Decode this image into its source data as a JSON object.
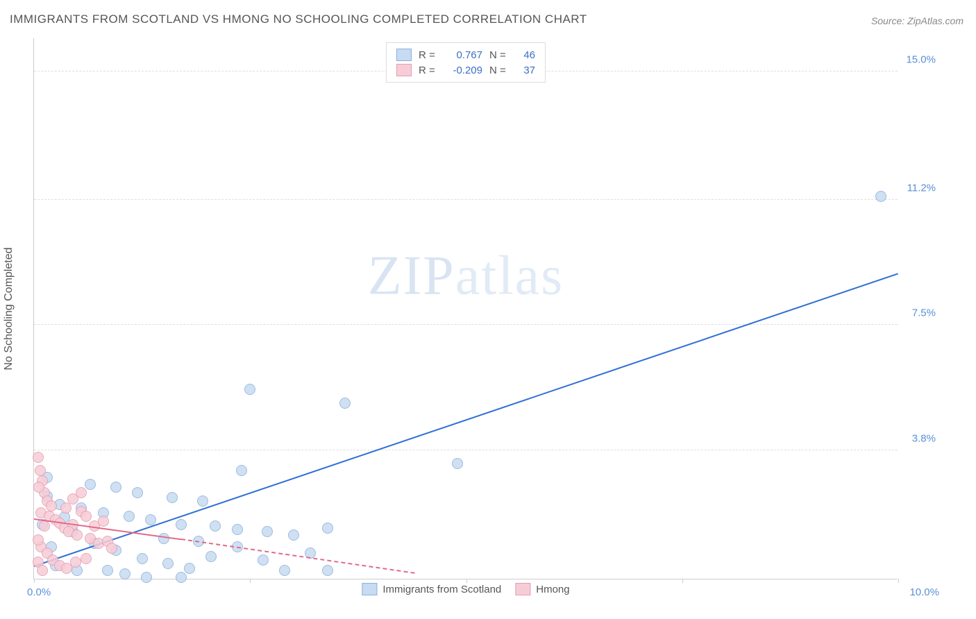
{
  "title": "IMMIGRANTS FROM SCOTLAND VS HMONG NO SCHOOLING COMPLETED CORRELATION CHART",
  "source": "Source: ZipAtlas.com",
  "ylabel": "No Schooling Completed",
  "watermark_a": "ZIP",
  "watermark_b": "atlas",
  "chart": {
    "type": "scatter",
    "xlim": [
      0,
      10
    ],
    "ylim": [
      0,
      16
    ],
    "x_tick_positions": [
      0,
      2.5,
      5,
      7.5,
      10
    ],
    "x_left_label": "0.0%",
    "x_right_label": "10.0%",
    "y_gridlines": [
      {
        "v": 3.8,
        "label": "3.8%"
      },
      {
        "v": 7.5,
        "label": "7.5%"
      },
      {
        "v": 11.2,
        "label": "11.2%"
      },
      {
        "v": 15.0,
        "label": "15.0%"
      }
    ],
    "background_color": "#ffffff",
    "grid_color": "#dddddd",
    "axis_color": "#cccccc",
    "tick_label_color": "#5b8fd6",
    "series": [
      {
        "key": "scotland",
        "label": "Immigrants from Scotland",
        "fill": "#c7dbf2",
        "stroke": "#8bb0de",
        "line_color": "#2e6fd6",
        "line_dash": "solid",
        "R": "0.767",
        "N": "46",
        "marker_radius": 8,
        "trend": {
          "x1": 0.0,
          "y1": 0.35,
          "x2": 10.0,
          "y2": 9.0
        },
        "points": [
          [
            9.8,
            11.3
          ],
          [
            2.5,
            5.6
          ],
          [
            3.6,
            5.2
          ],
          [
            4.9,
            3.4
          ],
          [
            0.15,
            3.0
          ],
          [
            0.65,
            2.8
          ],
          [
            0.95,
            2.7
          ],
          [
            1.2,
            2.55
          ],
          [
            1.6,
            2.4
          ],
          [
            1.95,
            2.3
          ],
          [
            2.4,
            3.2
          ],
          [
            0.3,
            2.2
          ],
          [
            0.55,
            2.1
          ],
          [
            0.8,
            1.95
          ],
          [
            1.1,
            1.85
          ],
          [
            1.35,
            1.75
          ],
          [
            1.7,
            1.6
          ],
          [
            1.5,
            1.2
          ],
          [
            1.9,
            1.1
          ],
          [
            2.1,
            1.55
          ],
          [
            2.35,
            1.45
          ],
          [
            2.7,
            1.4
          ],
          [
            3.0,
            1.3
          ],
          [
            3.4,
            1.5
          ],
          [
            0.45,
            1.4
          ],
          [
            0.7,
            1.05
          ],
          [
            0.95,
            0.85
          ],
          [
            1.25,
            0.6
          ],
          [
            1.55,
            0.45
          ],
          [
            1.8,
            0.3
          ],
          [
            2.05,
            0.65
          ],
          [
            2.35,
            0.95
          ],
          [
            2.65,
            0.55
          ],
          [
            2.9,
            0.25
          ],
          [
            3.2,
            0.75
          ],
          [
            3.4,
            0.25
          ],
          [
            0.2,
            0.95
          ],
          [
            0.1,
            1.6
          ],
          [
            0.25,
            0.4
          ],
          [
            0.5,
            0.25
          ],
          [
            0.85,
            0.25
          ],
          [
            1.05,
            0.15
          ],
          [
            1.3,
            0.05
          ],
          [
            1.7,
            0.05
          ],
          [
            0.35,
            1.82
          ],
          [
            0.15,
            2.45
          ]
        ]
      },
      {
        "key": "hmong",
        "label": "Hmong",
        "fill": "#f6cdd7",
        "stroke": "#e79bb0",
        "line_color": "#e16a8a",
        "line_dash": "dashed",
        "R": "-0.209",
        "N": "37",
        "marker_radius": 8,
        "trend_solid": {
          "x1": 0.0,
          "y1": 1.75,
          "x2": 1.7,
          "y2": 1.15
        },
        "trend": {
          "x1": 1.7,
          "y1": 1.15,
          "x2": 4.4,
          "y2": 0.15
        },
        "points": [
          [
            0.05,
            3.6
          ],
          [
            0.07,
            3.2
          ],
          [
            0.1,
            2.9
          ],
          [
            0.12,
            2.55
          ],
          [
            0.06,
            2.7
          ],
          [
            0.15,
            2.3
          ],
          [
            0.2,
            2.15
          ],
          [
            0.08,
            1.95
          ],
          [
            0.18,
            1.85
          ],
          [
            0.25,
            1.75
          ],
          [
            0.3,
            1.65
          ],
          [
            0.12,
            1.55
          ],
          [
            0.35,
            1.5
          ],
          [
            0.45,
            1.6
          ],
          [
            0.4,
            1.4
          ],
          [
            0.5,
            1.3
          ],
          [
            0.55,
            2.0
          ],
          [
            0.6,
            1.85
          ],
          [
            0.65,
            1.2
          ],
          [
            0.7,
            1.55
          ],
          [
            0.75,
            1.05
          ],
          [
            0.8,
            1.7
          ],
          [
            0.85,
            1.1
          ],
          [
            0.9,
            0.9
          ],
          [
            0.55,
            2.55
          ],
          [
            0.45,
            2.35
          ],
          [
            0.08,
            0.95
          ],
          [
            0.15,
            0.75
          ],
          [
            0.22,
            0.55
          ],
          [
            0.3,
            0.4
          ],
          [
            0.38,
            0.3
          ],
          [
            0.48,
            0.5
          ],
          [
            0.6,
            0.6
          ],
          [
            0.05,
            1.15
          ],
          [
            0.05,
            0.5
          ],
          [
            0.1,
            0.25
          ],
          [
            0.37,
            2.1
          ]
        ]
      }
    ]
  },
  "legend_top": {
    "r_label": "R =",
    "n_label": "N ="
  },
  "legend_bottom": {
    "items": [
      "Immigrants from Scotland",
      "Hmong"
    ]
  }
}
